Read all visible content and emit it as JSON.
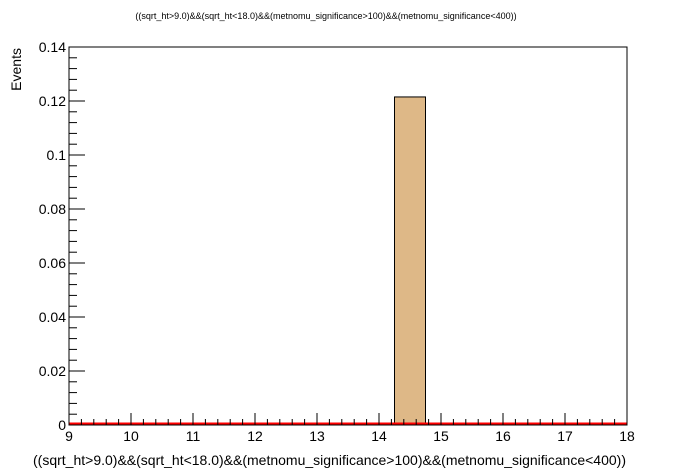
{
  "chart_data": {
    "type": "bar",
    "title": "((sqrt_ht>9.0)&&(sqrt_ht<18.0)&&(metnomu_significance>100)&&(metnomu_significance<400))",
    "xlabel": "((sqrt_ht>9.0)&&(sqrt_ht<18.0)&&(metnomu_significance>100)&&(metnomu_significance<400))",
    "ylabel": "Events",
    "xlim": [
      9,
      18
    ],
    "ylim": [
      0,
      0.14
    ],
    "x_ticks": [
      "9",
      "10",
      "11",
      "12",
      "13",
      "14",
      "15",
      "16",
      "17",
      "18"
    ],
    "y_ticks": [
      "0",
      "0.02",
      "0.04",
      "0.06",
      "0.08",
      "0.1",
      "0.12",
      "0.14"
    ],
    "bars": [
      {
        "x_low": 14.25,
        "x_high": 14.75,
        "value": 0.1215
      }
    ],
    "baseline_value": 0,
    "colors": {
      "bar_fill": "#deb887",
      "bar_edge": "#000000",
      "baseline": "#ff0000"
    },
    "grid": false,
    "legend": "none"
  }
}
